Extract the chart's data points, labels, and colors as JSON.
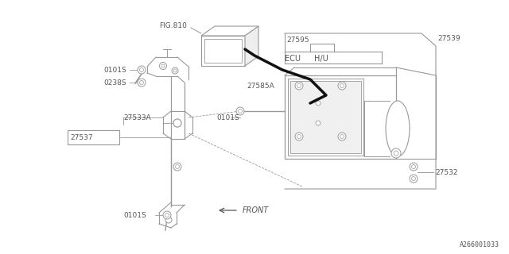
{
  "bg_color": "#ffffff",
  "line_color": "#999999",
  "dark_line": "#111111",
  "text_color": "#555555",
  "fig_width": 6.4,
  "fig_height": 3.2,
  "dpi": 100,
  "watermark": "A266001033",
  "labels": {
    "fig810": "FIG.810",
    "27595": "27595",
    "27539": "27539",
    "27585A": "27585A",
    "ecu": "ECU",
    "hu": "H/U",
    "0101S_top": "0101S",
    "0238S": "0238S",
    "27533A": "27533A",
    "27537": "27537",
    "0101S_mid": "0101S",
    "0101S_bot": "0101S",
    "27532": "27532",
    "front": "FRONT"
  }
}
